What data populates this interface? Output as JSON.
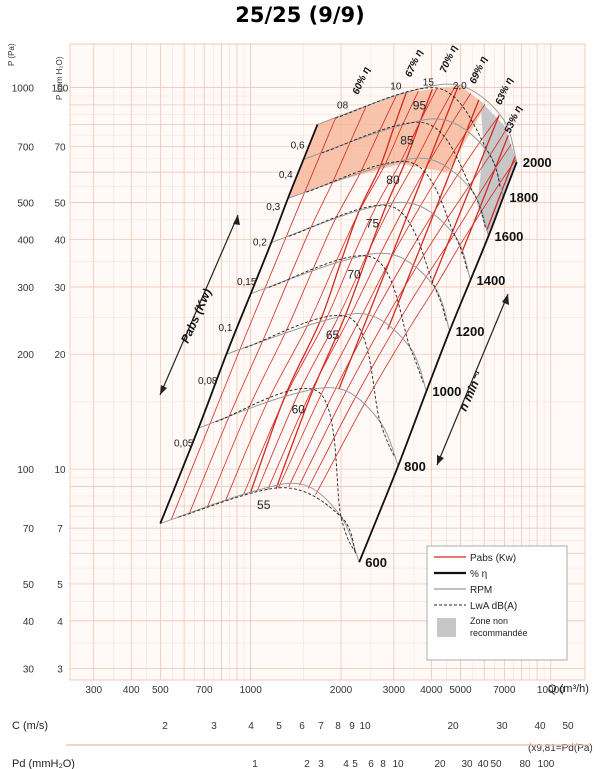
{
  "chart_data": {
    "type": "line",
    "title": "25/25 (9/9)",
    "xlabel": "Q (m³/h)",
    "ylabel_left": "P  (Pa)",
    "ylabel_right": "P  (mm H₂O)",
    "x_scale": "log",
    "y_scale": "log",
    "xlim": [
      250,
      13000
    ],
    "ylim": [
      28,
      1300
    ],
    "x_ticks": [
      300,
      400,
      500,
      700,
      1000,
      2000,
      3000,
      4000,
      5000,
      7000,
      10000
    ],
    "y_ticks_pa": [
      30,
      40,
      50,
      70,
      100,
      200,
      300,
      400,
      500,
      700,
      1000
    ],
    "y_ticks_mm": [
      3,
      4,
      5,
      7,
      10,
      20,
      30,
      40,
      50,
      70,
      100
    ],
    "grid": true,
    "rpm_curves": [
      {
        "name": "600",
        "points": [
          [
            500,
            72
          ],
          [
            1000,
            87
          ],
          [
            1500,
            91
          ],
          [
            2000,
            75
          ],
          [
            2300,
            57
          ]
        ]
      },
      {
        "name": "800",
        "points": [
          [
            670,
            128
          ],
          [
            1300,
            155
          ],
          [
            2000,
            162
          ],
          [
            2700,
            133
          ],
          [
            3100,
            102
          ]
        ]
      },
      {
        "name": "1000",
        "points": [
          [
            830,
            200
          ],
          [
            1700,
            243
          ],
          [
            2500,
            253
          ],
          [
            3400,
            208
          ],
          [
            3850,
            160
          ]
        ]
      },
      {
        "name": "1200",
        "points": [
          [
            1000,
            288
          ],
          [
            2000,
            350
          ],
          [
            3000,
            364
          ],
          [
            4100,
            300
          ],
          [
            4600,
            230
          ]
        ]
      },
      {
        "name": "1400",
        "points": [
          [
            1170,
            392
          ],
          [
            2300,
            476
          ],
          [
            3500,
            495
          ],
          [
            4800,
            408
          ],
          [
            5400,
            313
          ]
        ]
      },
      {
        "name": "1600",
        "points": [
          [
            1330,
            512
          ],
          [
            2700,
            620
          ],
          [
            4000,
            647
          ],
          [
            5500,
            533
          ],
          [
            6200,
            408
          ]
        ]
      },
      {
        "name": "1800",
        "points": [
          [
            1500,
            648
          ],
          [
            3000,
            786
          ],
          [
            4500,
            820
          ],
          [
            6200,
            675
          ],
          [
            6950,
            517
          ]
        ]
      },
      {
        "name": "2000",
        "points": [
          [
            1670,
            800
          ],
          [
            3300,
            970
          ],
          [
            5000,
            1011
          ],
          [
            6900,
            833
          ],
          [
            7700,
            638
          ]
        ]
      }
    ],
    "rpm_labels": [
      "600",
      "800",
      "1000",
      "1200",
      "1400",
      "1600",
      "1800",
      "2000"
    ],
    "efficiency_labels": [
      "60% η",
      "67% η",
      "70% η",
      "69% η",
      "63% η",
      "53% η"
    ],
    "power_labels": [
      "0,05",
      "0,08",
      "0,1",
      "0,15",
      "0,2",
      "0,3",
      "0,4",
      "0,6",
      "08",
      "10",
      "15",
      "2,0"
    ],
    "sound_labels": [
      "55",
      "60",
      "65",
      "70",
      "75",
      "80",
      "85",
      "95"
    ],
    "fan_speed_axis_label": "n  min⁻¹",
    "power_axis_label": "Pabs (Kw)",
    "legend": [
      {
        "label": "Pabs (Kw)",
        "style": "red-line",
        "color": "#d32a1f"
      },
      {
        "label": "% η",
        "style": "black-thick",
        "color": "#111111"
      },
      {
        "label": "RPM",
        "style": "gray-line",
        "color": "#9a9a9a"
      },
      {
        "label": "LwA dB(A)",
        "style": "dashed",
        "color": "#222222"
      },
      {
        "label": "Zone non recommandée",
        "style": "gray-fill",
        "color": "#c7c7c9"
      }
    ],
    "velocity_scale": {
      "label": "C (m/s)",
      "ticks": [
        "2",
        "3",
        "4",
        "5",
        "6",
        "7",
        "8",
        "9",
        "10",
        "20",
        "30",
        "40",
        "50"
      ]
    },
    "pressure_scale": {
      "label": "Pd (mmH₂O)",
      "ticks": [
        "1",
        "2",
        "3",
        "4",
        "5",
        "6",
        "8",
        "10",
        "20",
        "30",
        "40",
        "50",
        "80",
        "100"
      ],
      "note": "(x9,81=Pd(Pa)"
    }
  },
  "colors": {
    "grid": "#f6d7c9",
    "grid_major": "#efbfa7",
    "red": "#d32a1f",
    "salmon_fill": "#f7b99c",
    "not_recommended": "#c7c7c9"
  }
}
